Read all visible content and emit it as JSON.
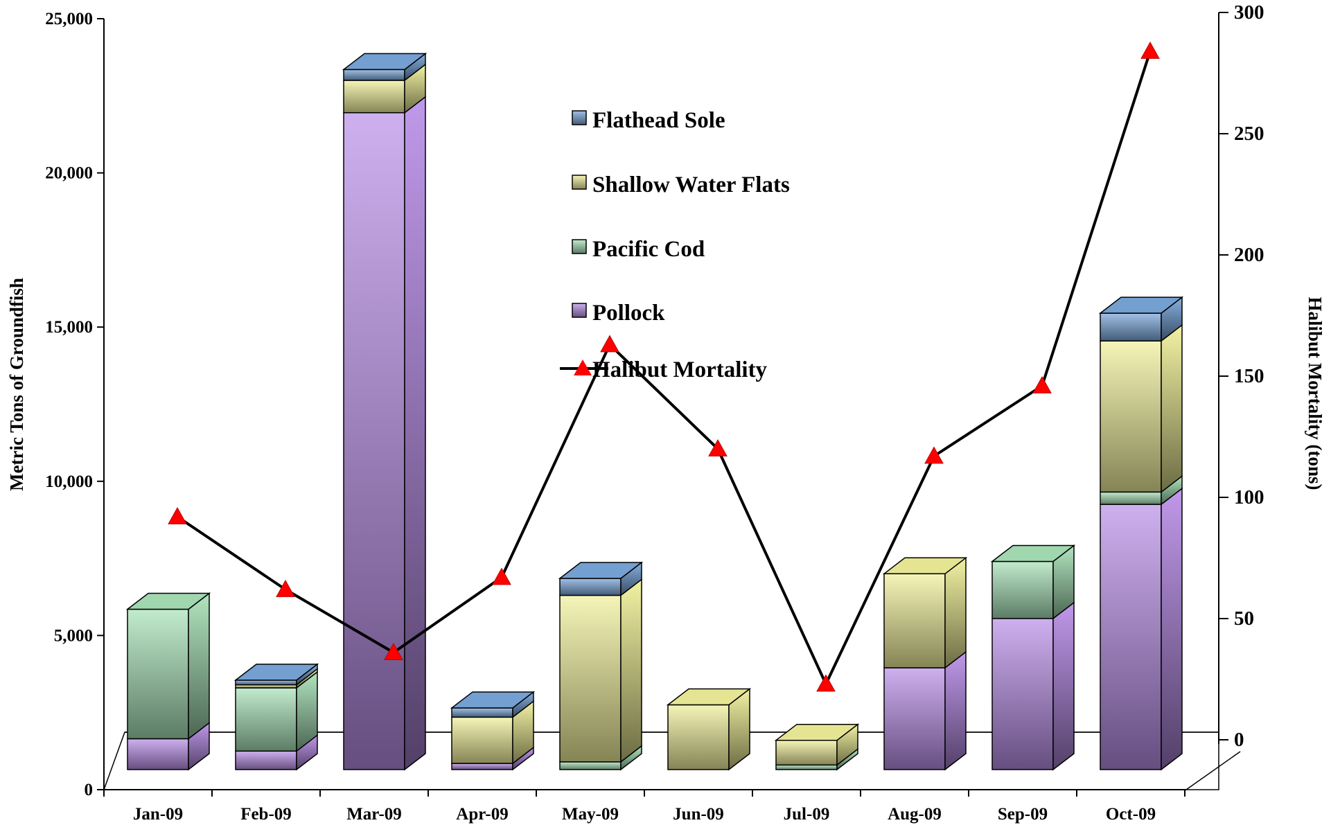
{
  "colors": {
    "pollock": "#b98ee8",
    "pacific_cod": "#a8e2b8",
    "shallow_water_flats": "#f1f09a",
    "flathead_sole": "#7aa7dc",
    "halibut_line": "#000000",
    "halibut_marker": "#ff0000"
  },
  "chart_data": {
    "type": "bar",
    "stacked": true,
    "three_d": true,
    "categories": [
      "Jan-09",
      "Feb-09",
      "Mar-09",
      "Apr-09",
      "May-09",
      "Jun-09",
      "Jul-09",
      "Aug-09",
      "Sep-09",
      "Oct-09"
    ],
    "series": [
      {
        "name": "Pollock",
        "key": "pollock",
        "axis": "left",
        "values": [
          1000,
          600,
          21300,
          200,
          0,
          0,
          0,
          3300,
          4900,
          8600
        ]
      },
      {
        "name": "Pacific Cod",
        "key": "pacific_cod",
        "axis": "left",
        "values": [
          4200,
          2050,
          0,
          0,
          250,
          0,
          150,
          0,
          1850,
          400
        ]
      },
      {
        "name": "Shallow Water Flats",
        "key": "shallow_water_flats",
        "axis": "left",
        "values": [
          0,
          100,
          1050,
          1500,
          5400,
          2100,
          800,
          3050,
          0,
          4900
        ]
      },
      {
        "name": "Flathead Sole",
        "key": "flathead_sole",
        "axis": "left",
        "values": [
          0,
          150,
          350,
          300,
          550,
          0,
          0,
          0,
          0,
          900
        ]
      },
      {
        "name": "Halibut Mortality",
        "key": "halibut",
        "axis": "right",
        "type": "line",
        "marker": "triangle",
        "values": [
          92,
          62,
          36,
          67,
          163,
          120,
          23,
          117,
          146,
          284
        ]
      }
    ],
    "ylabel": "Metric Tons of Groundfish",
    "y2label": "Halibut Mortality (tons)",
    "ylim": [
      0,
      25000
    ],
    "y2lim": [
      0,
      300
    ],
    "yticks": [
      "0",
      "5,000",
      "10,000",
      "15,000",
      "20,000",
      "25,000"
    ],
    "y2ticks": [
      "0",
      "50",
      "100",
      "150",
      "200",
      "250",
      "300"
    ],
    "legend": {
      "position": "top-center",
      "entries": [
        "Flathead Sole",
        "Shallow Water Flats",
        "Pacific Cod",
        "Pollock",
        "Halibut Mortality"
      ]
    },
    "grid": false
  }
}
